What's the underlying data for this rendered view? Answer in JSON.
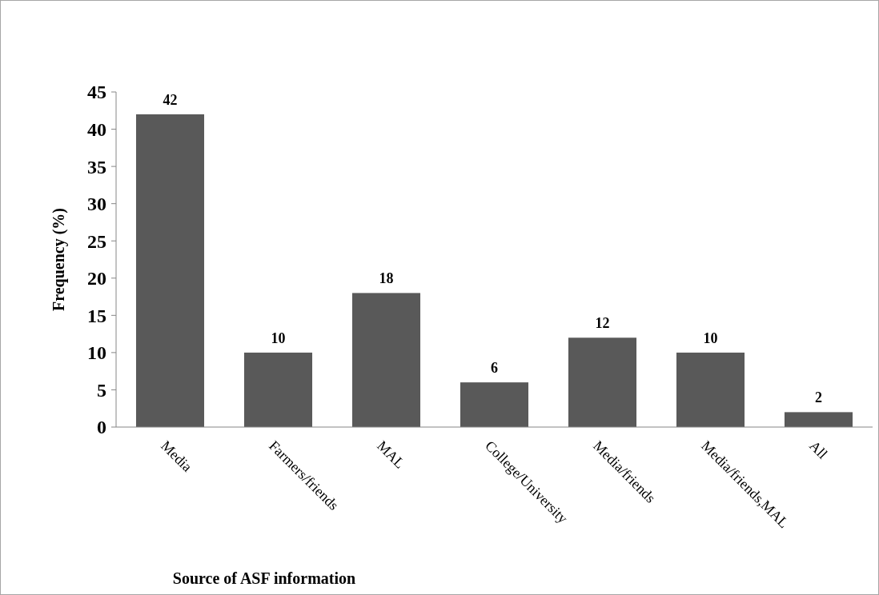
{
  "chart_data": {
    "type": "bar",
    "xlabel": "Source of ASF information",
    "ylabel": "Frequency (%)",
    "categories": [
      "Media",
      "Farmers/friends",
      "MAL",
      "College/University",
      "Media/friends",
      "Media/friends,MAL",
      "All"
    ],
    "values": [
      42,
      10,
      18,
      6,
      12,
      10,
      2
    ],
    "color": "#595959",
    "ylim": [
      0,
      45
    ],
    "yticks": [
      0,
      5,
      10,
      15,
      20,
      25,
      30,
      35,
      40,
      45
    ],
    "grid": false,
    "data_labels": true
  }
}
